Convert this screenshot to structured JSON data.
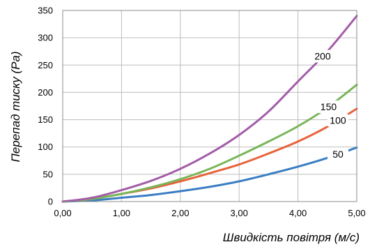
{
  "chart_data": {
    "type": "line",
    "xlabel": "Швидкість повітря  (м/с)",
    "ylabel": "Перепад тиску (Pa)",
    "xlim": [
      0,
      5
    ],
    "ylim": [
      0,
      350
    ],
    "x_ticks": [
      "0,00",
      "1,00",
      "2,00",
      "3,00",
      "4,00",
      "5,00"
    ],
    "y_ticks": [
      "0",
      "50",
      "100",
      "150",
      "200",
      "250",
      "300",
      "350"
    ],
    "grid": true,
    "series": [
      {
        "name": "50",
        "color": "#3a7dc2",
        "x": [
          0,
          0.5,
          1.0,
          1.5,
          2.0,
          2.5,
          3.0,
          3.5,
          4.0,
          4.5,
          5.0
        ],
        "y": [
          0,
          2,
          7,
          12,
          19,
          27,
          37,
          50,
          64,
          80,
          99
        ]
      },
      {
        "name": "100",
        "color": "#e8623a",
        "x": [
          0,
          0.5,
          1.0,
          1.5,
          2.0,
          2.5,
          3.0,
          3.5,
          4.0,
          4.5,
          5.0
        ],
        "y": [
          0,
          5,
          14,
          24,
          37,
          52,
          68,
          88,
          110,
          137,
          170
        ]
      },
      {
        "name": "150",
        "color": "#79b558",
        "x": [
          0,
          0.5,
          1.0,
          1.5,
          2.0,
          2.5,
          3.0,
          3.5,
          4.0,
          4.5,
          5.0
        ],
        "y": [
          0,
          5,
          14,
          26,
          41,
          60,
          84,
          110,
          138,
          172,
          214
        ]
      },
      {
        "name": "200",
        "color": "#a35ca8",
        "x": [
          0,
          0.5,
          1.0,
          1.5,
          2.0,
          2.5,
          3.0,
          3.5,
          4.0,
          4.5,
          5.0
        ],
        "y": [
          0,
          7,
          21,
          38,
          60,
          88,
          122,
          165,
          220,
          275,
          340
        ]
      }
    ]
  }
}
